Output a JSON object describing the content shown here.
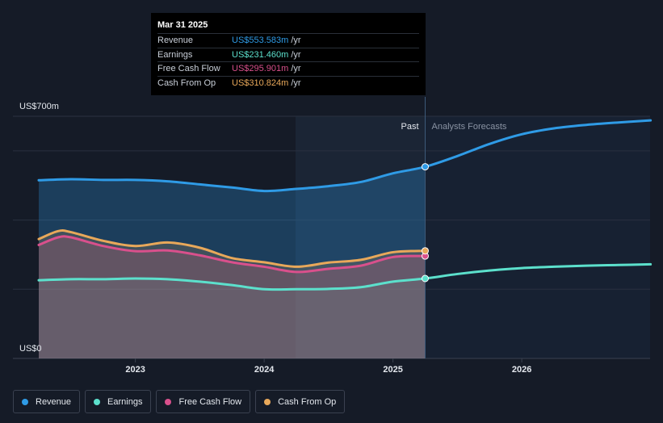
{
  "chart_data": {
    "type": "area",
    "y_top_label": "US$700m",
    "y_bottom_label": "US$0",
    "ylim": [
      0,
      700
    ],
    "x_ticks": [
      "2023",
      "2024",
      "2025",
      "2026"
    ],
    "divider_labels": {
      "past": "Past",
      "forecast": "Analysts Forecasts"
    },
    "series": [
      {
        "name": "Revenue",
        "color": "#2f9be6",
        "x": [
          2022.25,
          2022.5,
          2022.75,
          2023.0,
          2023.25,
          2023.5,
          2023.75,
          2024.0,
          2024.25,
          2024.5,
          2024.75,
          2025.0,
          2025.25,
          2025.5,
          2025.75,
          2026.0,
          2026.25,
          2026.5,
          2026.75,
          2027.0
        ],
        "values": [
          515,
          518,
          516,
          516,
          512,
          503,
          494,
          484,
          490,
          498,
          510,
          535,
          554,
          585,
          620,
          648,
          665,
          675,
          682,
          688
        ]
      },
      {
        "name": "Earnings",
        "color": "#5ce0cc",
        "x": [
          2022.25,
          2022.5,
          2022.75,
          2023.0,
          2023.25,
          2023.5,
          2023.75,
          2024.0,
          2024.25,
          2024.5,
          2024.75,
          2025.0,
          2025.25,
          2025.5,
          2025.75,
          2026.0,
          2026.25,
          2026.5,
          2026.75,
          2027.0
        ],
        "values": [
          226,
          229,
          229,
          231,
          229,
          222,
          212,
          200,
          200,
          201,
          206,
          222,
          231,
          244,
          254,
          261,
          265,
          268,
          270,
          272
        ]
      },
      {
        "name": "Free Cash Flow",
        "color": "#d9508c",
        "x": [
          2022.25,
          2022.4,
          2022.5,
          2022.75,
          2023.0,
          2023.25,
          2023.5,
          2023.75,
          2024.0,
          2024.25,
          2024.5,
          2024.75,
          2025.0,
          2025.25
        ],
        "values": [
          328,
          350,
          350,
          325,
          310,
          312,
          298,
          278,
          265,
          250,
          259,
          268,
          293,
          296
        ]
      },
      {
        "name": "Cash From Op",
        "color": "#e8a85a",
        "x": [
          2022.25,
          2022.4,
          2022.5,
          2022.75,
          2023.0,
          2023.25,
          2023.5,
          2023.75,
          2024.0,
          2024.25,
          2024.5,
          2024.75,
          2025.0,
          2025.25
        ],
        "values": [
          345,
          368,
          365,
          340,
          325,
          335,
          320,
          290,
          278,
          265,
          277,
          285,
          307,
          311
        ]
      }
    ],
    "past_end_x": 2025.25
  },
  "tooltip": {
    "date": "Mar 31 2025",
    "rows": [
      {
        "label": "Revenue",
        "value": "US$553.583m",
        "unit": "/yr",
        "color": "#2f9be6"
      },
      {
        "label": "Earnings",
        "value": "US$231.460m",
        "unit": "/yr",
        "color": "#5ce0cc"
      },
      {
        "label": "Free Cash Flow",
        "value": "US$295.901m",
        "unit": "/yr",
        "color": "#d9508c"
      },
      {
        "label": "Cash From Op",
        "value": "US$310.824m",
        "unit": "/yr",
        "color": "#e8a85a"
      }
    ]
  },
  "legend": [
    {
      "label": "Revenue",
      "color": "#2f9be6"
    },
    {
      "label": "Earnings",
      "color": "#5ce0cc"
    },
    {
      "label": "Free Cash Flow",
      "color": "#d9508c"
    },
    {
      "label": "Cash From Op",
      "color": "#e8a85a"
    }
  ]
}
